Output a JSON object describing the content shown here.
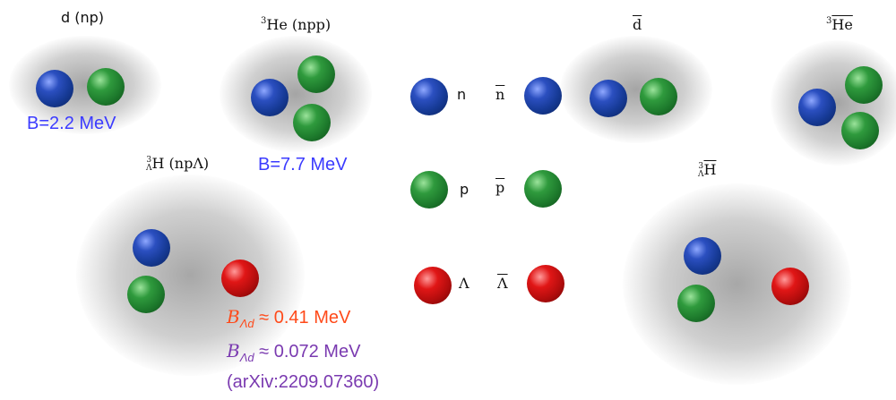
{
  "labels": {
    "deuteron": "d (np)",
    "helium3_sup": "3",
    "helium3": "He (npp)",
    "hypertriton_sup": "3",
    "hypertriton_sub": "Λ",
    "hypertriton": "H (npΛ)",
    "antideuteron": "d",
    "antihelium3_sup": "3",
    "antihelium3": "He",
    "antihypertriton_sup": "3",
    "antihypertriton_sub": "Λ",
    "antihypertriton": "H"
  },
  "particles": {
    "n": "n",
    "nbar": "n",
    "p": "p",
    "pbar": "p",
    "lambda": "Λ",
    "lambdabar": "Λ"
  },
  "binding": {
    "deuteron": "B=2.2 MeV",
    "helium3": "B=7.7 MeV",
    "lambda_symbol": "B",
    "lambda_sub": "Λd",
    "lambda1_value": "≈ 0.41 MeV",
    "lambda2_value": "≈ 0.072 MeV",
    "reference": "(arXiv:2209.07360)"
  },
  "colors": {
    "neutron": "#163a96",
    "proton": "#1d7a2c",
    "lambda": "#b40d0d",
    "binding_blue": "#3b3bff",
    "binding_orange": "#ff4a1a",
    "binding_purple": "#7a3ab0"
  }
}
